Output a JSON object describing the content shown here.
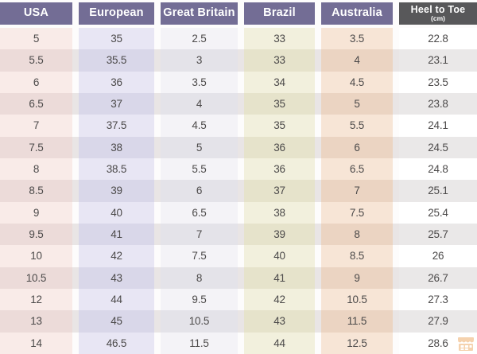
{
  "chart_data": {
    "type": "table",
    "title": "",
    "columns": [
      {
        "id": "usa",
        "label": "USA",
        "header_bg": "#736d95",
        "odd_bg": "#f9ebe8",
        "even_bg": "#ecdbd9"
      },
      {
        "id": "european",
        "label": "European",
        "header_bg": "#736d95",
        "odd_bg": "#e8e6f4",
        "even_bg": "#d9d7e9"
      },
      {
        "id": "gb",
        "label": "Great Britain",
        "header_bg": "#736d95",
        "odd_bg": "#f4f3f7",
        "even_bg": "#e4e3e9"
      },
      {
        "id": "brazil",
        "label": "Brazil",
        "header_bg": "#736d95",
        "odd_bg": "#f2f0dd",
        "even_bg": "#e6e3cb"
      },
      {
        "id": "australia",
        "label": "Australia",
        "header_bg": "#736d95",
        "odd_bg": "#f7e5d6",
        "even_bg": "#ebd4c2"
      },
      {
        "id": "heel",
        "label": "Heel to Toe",
        "sublabel": "(cm)",
        "header_bg": "#58585a",
        "odd_bg": "#ffffff",
        "even_bg": "#eae8e8"
      }
    ],
    "gap_colors": {
      "odd": "#fdfcfc",
      "even": "#e9e5e5"
    },
    "rows": [
      [
        "5",
        "35",
        "2.5",
        "33",
        "3.5",
        "22.8"
      ],
      [
        "5.5",
        "35.5",
        "3",
        "33",
        "4",
        "23.1"
      ],
      [
        "6",
        "36",
        "3.5",
        "34",
        "4.5",
        "23.5"
      ],
      [
        "6.5",
        "37",
        "4",
        "35",
        "5",
        "23.8"
      ],
      [
        "7",
        "37.5",
        "4.5",
        "35",
        "5.5",
        "24.1"
      ],
      [
        "7.5",
        "38",
        "5",
        "36",
        "6",
        "24.5"
      ],
      [
        "8",
        "38.5",
        "5.5",
        "36",
        "6.5",
        "24.8"
      ],
      [
        "8.5",
        "39",
        "6",
        "37",
        "7",
        "25.1"
      ],
      [
        "9",
        "40",
        "6.5",
        "38",
        "7.5",
        "25.4"
      ],
      [
        "9.5",
        "41",
        "7",
        "39",
        "8",
        "25.7"
      ],
      [
        "10",
        "42",
        "7.5",
        "40",
        "8.5",
        "26"
      ],
      [
        "10.5",
        "43",
        "8",
        "41",
        "9",
        "26.7"
      ],
      [
        "12",
        "44",
        "9.5",
        "42",
        "10.5",
        "27.3"
      ],
      [
        "13",
        "45",
        "10.5",
        "43",
        "11.5",
        "27.9"
      ],
      [
        "14",
        "46.5",
        "11.5",
        "44",
        "12.5",
        "28.6"
      ]
    ]
  },
  "watermark": {
    "name": "shop-watermark-icon",
    "color": "#eda75f"
  },
  "colors": {
    "header_purple": "#736d95",
    "header_dark": "#58585a",
    "header_text": "#ffffff",
    "body_text": "#4c4a4a",
    "page_bg": "#fdfcfc"
  }
}
